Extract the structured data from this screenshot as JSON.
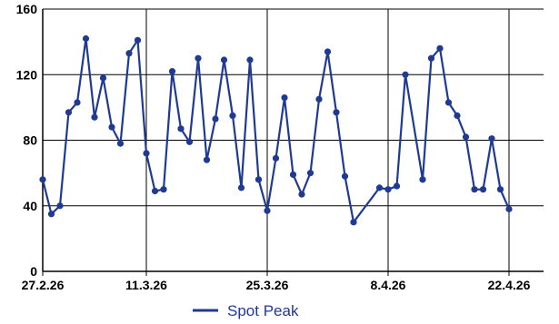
{
  "chart_data": {
    "type": "line",
    "title": "",
    "xlabel": "",
    "ylabel": "",
    "ylim": [
      0,
      160
    ],
    "xlim": [
      "2026-02-27",
      "2026-04-26"
    ],
    "yticks": [
      0,
      40,
      80,
      120,
      160
    ],
    "ytick_labels": [
      "0",
      "40",
      "80",
      "120",
      "160"
    ],
    "xticks": [
      "2026-02-27",
      "2026-03-11",
      "2026-03-25",
      "2026-04-08",
      "2026-04-22"
    ],
    "xtick_labels": [
      "27.2.26",
      "11.3.26",
      "25.3.26",
      "8.4.26",
      "22.4.26"
    ],
    "grid": true,
    "legend_position": "bottom-center",
    "series": [
      {
        "name": "Spot Peak",
        "color": "#1f3a93",
        "points": [
          [
            "2026-02-27",
            56
          ],
          [
            "2026-02-28",
            35
          ],
          [
            "2026-03-01",
            40
          ],
          [
            "2026-03-02",
            97
          ],
          [
            "2026-03-03",
            103
          ],
          [
            "2026-03-04",
            142
          ],
          [
            "2026-03-05",
            94
          ],
          [
            "2026-03-06",
            118
          ],
          [
            "2026-03-07",
            88
          ],
          [
            "2026-03-08",
            78
          ],
          [
            "2026-03-09",
            133
          ],
          [
            "2026-03-10",
            141
          ],
          [
            "2026-03-11",
            72
          ],
          [
            "2026-03-12",
            49
          ],
          [
            "2026-03-13",
            50
          ],
          [
            "2026-03-14",
            122
          ],
          [
            "2026-03-15",
            87
          ],
          [
            "2026-03-16",
            79
          ],
          [
            "2026-03-17",
            130
          ],
          [
            "2026-03-18",
            68
          ],
          [
            "2026-03-19",
            93
          ],
          [
            "2026-03-20",
            129
          ],
          [
            "2026-03-21",
            95
          ],
          [
            "2026-03-22",
            51
          ],
          [
            "2026-03-23",
            129
          ],
          [
            "2026-03-24",
            56
          ],
          [
            "2026-03-25",
            37
          ],
          [
            "2026-03-26",
            69
          ],
          [
            "2026-03-27",
            106
          ],
          [
            "2026-03-28",
            59
          ],
          [
            "2026-03-29",
            47
          ],
          [
            "2026-03-30",
            60
          ],
          [
            "2026-03-31",
            105
          ],
          [
            "2026-04-01",
            134
          ],
          [
            "2026-04-02",
            97
          ],
          [
            "2026-04-03",
            58
          ],
          [
            "2026-04-04",
            30
          ],
          [
            "2026-04-07",
            51
          ],
          [
            "2026-04-08",
            50
          ],
          [
            "2026-04-09",
            52
          ],
          [
            "2026-04-10",
            120
          ],
          [
            "2026-04-12",
            56
          ],
          [
            "2026-04-13",
            130
          ],
          [
            "2026-04-14",
            136
          ],
          [
            "2026-04-15",
            103
          ],
          [
            "2026-04-16",
            95
          ],
          [
            "2026-04-17",
            82
          ],
          [
            "2026-04-18",
            50
          ],
          [
            "2026-04-19",
            50
          ],
          [
            "2026-04-20",
            81
          ],
          [
            "2026-04-21",
            50
          ],
          [
            "2026-04-22",
            38
          ]
        ]
      }
    ]
  }
}
